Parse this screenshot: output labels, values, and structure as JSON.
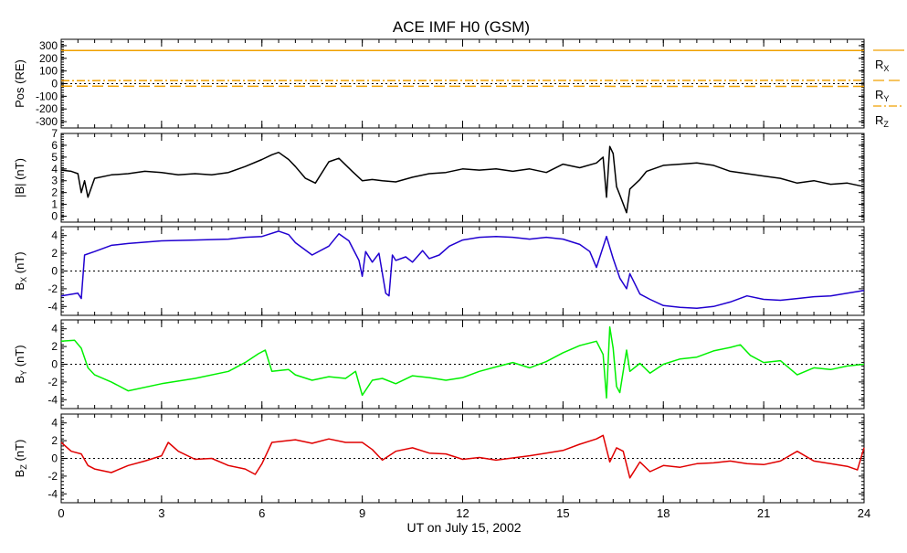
{
  "chart_data": {
    "type": "line",
    "title": "ACE IMF H0 (GSM)",
    "xlabel": "UT on July 15, 2002",
    "xlim": [
      0,
      24
    ],
    "xticks": [
      0,
      3,
      6,
      9,
      12,
      15,
      18,
      21,
      24
    ],
    "xticklabels": [
      "0",
      "3",
      "6",
      "9",
      "12",
      "15",
      "18",
      "21",
      "24"
    ],
    "grid": false,
    "panels": [
      {
        "key": "pos",
        "ylabel": "Pos (RE)",
        "ylim": [
          -350,
          350
        ],
        "yticks": [
          300,
          200,
          100,
          0,
          -100,
          -200,
          -300
        ],
        "yticklabels": [
          "300",
          "200",
          "100",
          "0",
          "-100",
          "-200",
          "-300"
        ],
        "zero_line": true,
        "legend": [
          {
            "name": "RX",
            "label_main": "R",
            "label_sub": "X",
            "color": "#f0a000",
            "dash": "solid"
          },
          {
            "name": "RY",
            "label_main": "R",
            "label_sub": "Y",
            "color": "#f0a000",
            "dash": "long"
          },
          {
            "name": "RZ",
            "label_main": "R",
            "label_sub": "Z",
            "color": "#f0a000",
            "dash": "dashdot"
          }
        ],
        "series": [
          {
            "name": "RX",
            "color": "#f0a000",
            "dash": "solid",
            "x": [
              0,
              24
            ],
            "values": [
              262,
              262
            ]
          },
          {
            "name": "RY",
            "color": "#f0a000",
            "dash": "long",
            "x": [
              0,
              24
            ],
            "values": [
              -20,
              -22
            ]
          },
          {
            "name": "RZ",
            "color": "#f0a000",
            "dash": "dashdot",
            "x": [
              0,
              24
            ],
            "values": [
              24,
              26
            ]
          }
        ]
      },
      {
        "key": "bmag",
        "ylabel": "|B| (nT)",
        "ylim": [
          -0.5,
          7
        ],
        "yticks": [
          7,
          6,
          5,
          4,
          3,
          2,
          1,
          0
        ],
        "yticklabels": [
          "7",
          "6",
          "5",
          "4",
          "3",
          "2",
          "1",
          "0"
        ],
        "zero_line": false,
        "series": [
          {
            "name": "|B|",
            "color": "#000000",
            "x": [
              0,
              0.3,
              0.5,
              0.6,
              0.7,
              0.8,
              1.0,
              1.5,
              2.0,
              2.5,
              3.0,
              3.5,
              4.0,
              4.5,
              5.0,
              5.5,
              6.0,
              6.3,
              6.5,
              6.8,
              7.0,
              7.3,
              7.6,
              8.0,
              8.3,
              8.7,
              9.0,
              9.3,
              9.6,
              10.0,
              10.5,
              11.0,
              11.5,
              12.0,
              12.5,
              13.0,
              13.5,
              14.0,
              14.5,
              15.0,
              15.5,
              16.0,
              16.2,
              16.3,
              16.4,
              16.5,
              16.6,
              16.7,
              16.9,
              17.0,
              17.3,
              17.5,
              18.0,
              18.5,
              19.0,
              19.5,
              20.0,
              20.5,
              21.0,
              21.5,
              22.0,
              22.5,
              23.0,
              23.5,
              24.0
            ],
            "values": [
              3.9,
              3.8,
              3.6,
              2.0,
              3.0,
              1.6,
              3.2,
              3.5,
              3.6,
              3.8,
              3.7,
              3.5,
              3.6,
              3.5,
              3.7,
              4.2,
              4.8,
              5.2,
              5.4,
              4.8,
              4.2,
              3.2,
              2.8,
              4.6,
              4.9,
              3.8,
              3.0,
              3.1,
              3.0,
              2.9,
              3.3,
              3.6,
              3.7,
              4.0,
              3.9,
              4.0,
              3.8,
              4.0,
              3.7,
              4.4,
              4.1,
              4.5,
              5.0,
              1.6,
              5.9,
              5.3,
              2.5,
              1.8,
              0.3,
              2.3,
              3.1,
              3.8,
              4.3,
              4.4,
              4.5,
              4.3,
              3.8,
              3.6,
              3.4,
              3.2,
              2.8,
              3.0,
              2.7,
              2.8,
              2.5
            ]
          }
        ]
      },
      {
        "key": "bx",
        "ylabel": "BX (nT)",
        "ylabel_main": "B",
        "ylabel_sub": "X",
        "ylabel_unit": " (nT)",
        "ylim": [
          -5,
          5
        ],
        "yticks": [
          4,
          2,
          0,
          -2,
          -4
        ],
        "yticklabels": [
          "4",
          "2",
          "0",
          "-2",
          "-4"
        ],
        "zero_line": true,
        "series": [
          {
            "name": "BX",
            "color": "#2000d0",
            "x": [
              0,
              0.5,
              0.6,
              0.7,
              1.0,
              1.5,
              2.0,
              3.0,
              4.0,
              5.0,
              5.5,
              6.0,
              6.5,
              6.8,
              7.0,
              7.5,
              8.0,
              8.3,
              8.6,
              8.9,
              9.0,
              9.1,
              9.3,
              9.5,
              9.7,
              9.8,
              9.9,
              10.0,
              10.3,
              10.5,
              10.8,
              11.0,
              11.3,
              11.6,
              12.0,
              12.5,
              13.0,
              13.5,
              14.0,
              14.5,
              15.0,
              15.5,
              15.8,
              16.0,
              16.3,
              16.5,
              16.7,
              16.9,
              17.0,
              17.3,
              17.6,
              18.0,
              18.5,
              19.0,
              19.5,
              20.0,
              20.5,
              21.0,
              21.5,
              22.0,
              22.5,
              23.0,
              23.5,
              24.0
            ],
            "values": [
              -2.8,
              -2.5,
              -3.1,
              1.8,
              2.2,
              2.9,
              3.1,
              3.4,
              3.5,
              3.6,
              3.8,
              3.9,
              4.5,
              4.1,
              3.2,
              1.8,
              2.8,
              4.2,
              3.4,
              1.2,
              -0.6,
              2.2,
              1.0,
              2.0,
              -2.5,
              -2.8,
              1.8,
              1.2,
              1.6,
              1.0,
              2.3,
              1.4,
              1.8,
              2.8,
              3.5,
              3.8,
              3.9,
              3.8,
              3.6,
              3.8,
              3.6,
              3.0,
              2.2,
              0.4,
              3.9,
              1.4,
              -0.8,
              -2.0,
              -0.3,
              -2.6,
              -3.2,
              -3.9,
              -4.1,
              -4.2,
              -4.0,
              -3.5,
              -2.8,
              -3.2,
              -3.3,
              -3.1,
              -2.9,
              -2.8,
              -2.5,
              -2.2
            ]
          }
        ]
      },
      {
        "key": "by",
        "ylabel": "BY (nT)",
        "ylabel_main": "B",
        "ylabel_sub": "Y",
        "ylabel_unit": " (nT)",
        "ylim": [
          -5,
          5
        ],
        "yticks": [
          4,
          2,
          0,
          -2,
          -4
        ],
        "yticklabels": [
          "4",
          "2",
          "0",
          "-2",
          "-4"
        ],
        "zero_line": true,
        "series": [
          {
            "name": "BY",
            "color": "#00f000",
            "x": [
              0,
              0.4,
              0.6,
              0.8,
              1.0,
              1.5,
              2.0,
              3.0,
              4.0,
              5.0,
              5.5,
              5.9,
              6.1,
              6.3,
              6.8,
              7.0,
              7.5,
              8.0,
              8.5,
              8.8,
              9.0,
              9.3,
              9.6,
              10.0,
              10.5,
              11.0,
              11.5,
              12.0,
              12.5,
              13.0,
              13.5,
              14.0,
              14.5,
              15.0,
              15.5,
              16.0,
              16.2,
              16.3,
              16.4,
              16.5,
              16.6,
              16.7,
              16.9,
              17.0,
              17.3,
              17.6,
              18.0,
              18.5,
              19.0,
              19.5,
              20.0,
              20.3,
              20.6,
              21.0,
              21.5,
              22.0,
              22.5,
              23.0,
              23.5,
              24.0
            ],
            "values": [
              2.6,
              2.7,
              1.8,
              -0.4,
              -1.2,
              -2.0,
              -3.0,
              -2.2,
              -1.6,
              -0.8,
              0.2,
              1.2,
              1.6,
              -0.8,
              -0.6,
              -1.2,
              -1.8,
              -1.4,
              -1.6,
              -0.8,
              -3.5,
              -1.8,
              -1.6,
              -2.2,
              -1.3,
              -1.5,
              -1.8,
              -1.5,
              -0.8,
              -0.3,
              0.2,
              -0.4,
              0.3,
              1.3,
              2.1,
              2.6,
              1.1,
              -3.8,
              4.2,
              1.8,
              -2.5,
              -3.2,
              1.6,
              -0.8,
              0.1,
              -1.0,
              0.0,
              0.6,
              0.8,
              1.5,
              1.9,
              2.2,
              1.0,
              0.2,
              0.4,
              -1.2,
              -0.4,
              -0.6,
              -0.2,
              0.0
            ]
          }
        ]
      },
      {
        "key": "bz",
        "ylabel": "BZ (nT)",
        "ylabel_main": "B",
        "ylabel_sub": "Z",
        "ylabel_unit": " (nT)",
        "ylim": [
          -5,
          5
        ],
        "yticks": [
          4,
          2,
          0,
          -2,
          -4
        ],
        "yticklabels": [
          "4",
          "2",
          "0",
          "-2",
          "-4"
        ],
        "zero_line": true,
        "series": [
          {
            "name": "BZ",
            "color": "#e00000",
            "x": [
              0,
              0.3,
              0.6,
              0.8,
              1.0,
              1.5,
              2.0,
              2.5,
              3.0,
              3.2,
              3.5,
              4.0,
              4.5,
              5.0,
              5.5,
              5.8,
              6.0,
              6.3,
              7.0,
              7.5,
              8.0,
              8.5,
              9.0,
              9.3,
              9.6,
              10.0,
              10.5,
              11.0,
              11.5,
              12.0,
              12.5,
              13.0,
              14.0,
              14.5,
              15.0,
              15.5,
              16.0,
              16.2,
              16.4,
              16.6,
              16.8,
              17.0,
              17.3,
              17.6,
              18.0,
              18.5,
              19.0,
              19.5,
              20.0,
              20.5,
              21.0,
              21.5,
              22.0,
              22.5,
              23.0,
              23.5,
              23.8,
              24.0
            ],
            "values": [
              1.8,
              0.8,
              0.5,
              -0.8,
              -1.2,
              -1.6,
              -0.8,
              -0.3,
              0.3,
              1.8,
              0.8,
              -0.1,
              0.0,
              -0.8,
              -1.2,
              -1.8,
              -0.6,
              1.8,
              2.1,
              1.7,
              2.2,
              1.8,
              1.8,
              1.0,
              -0.2,
              0.8,
              1.2,
              0.6,
              0.5,
              -0.1,
              0.1,
              -0.2,
              0.3,
              0.6,
              0.9,
              1.6,
              2.2,
              2.6,
              -0.4,
              1.2,
              0.8,
              -2.2,
              -0.4,
              -1.5,
              -0.8,
              -1.0,
              -0.6,
              -0.5,
              -0.3,
              -0.6,
              -0.7,
              -0.3,
              0.8,
              -0.3,
              -0.6,
              -0.9,
              -1.3,
              1.2
            ]
          }
        ]
      }
    ]
  }
}
